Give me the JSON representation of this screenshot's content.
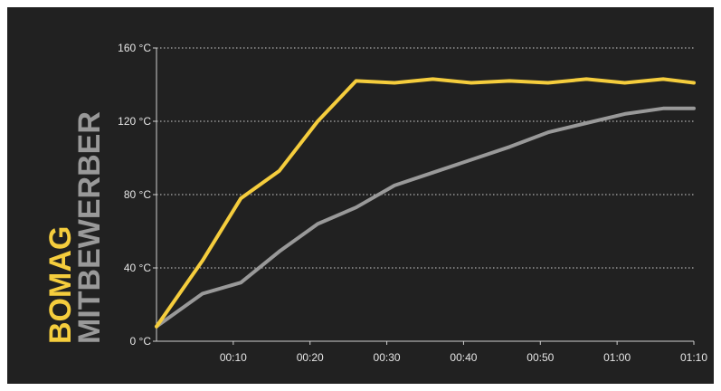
{
  "chart_data": {
    "type": "line",
    "xlabel": "",
    "ylabel": "",
    "x_ticks": [
      "00:10",
      "00:20",
      "00:30",
      "00:40",
      "00:50",
      "01:00",
      "01:10"
    ],
    "y_ticks": [
      "0 °C",
      "40 °C",
      "80 °C",
      "120 °C",
      "160 °C"
    ],
    "xlim": [
      0,
      70
    ],
    "ylim": [
      0,
      160
    ],
    "grid": "horizontal-dotted",
    "legend_placement": "left-vertical",
    "series": [
      {
        "name": "BOMAG",
        "color": "#f5cd3d",
        "x": [
          0,
          6,
          11,
          16,
          21,
          26,
          31,
          36,
          41,
          46,
          51,
          56,
          61,
          66,
          70
        ],
        "y": [
          8,
          44,
          78,
          93,
          120,
          142,
          141,
          143,
          141,
          142,
          141,
          143,
          141,
          143,
          141
        ]
      },
      {
        "name": "MITBEWERBER",
        "color": "#999999",
        "x": [
          0,
          6,
          11,
          16,
          21,
          26,
          31,
          36,
          41,
          46,
          51,
          56,
          61,
          66,
          70
        ],
        "y": [
          8,
          26,
          32,
          49,
          64,
          73,
          85,
          92,
          99,
          106,
          114,
          119,
          124,
          127,
          127
        ]
      }
    ]
  }
}
